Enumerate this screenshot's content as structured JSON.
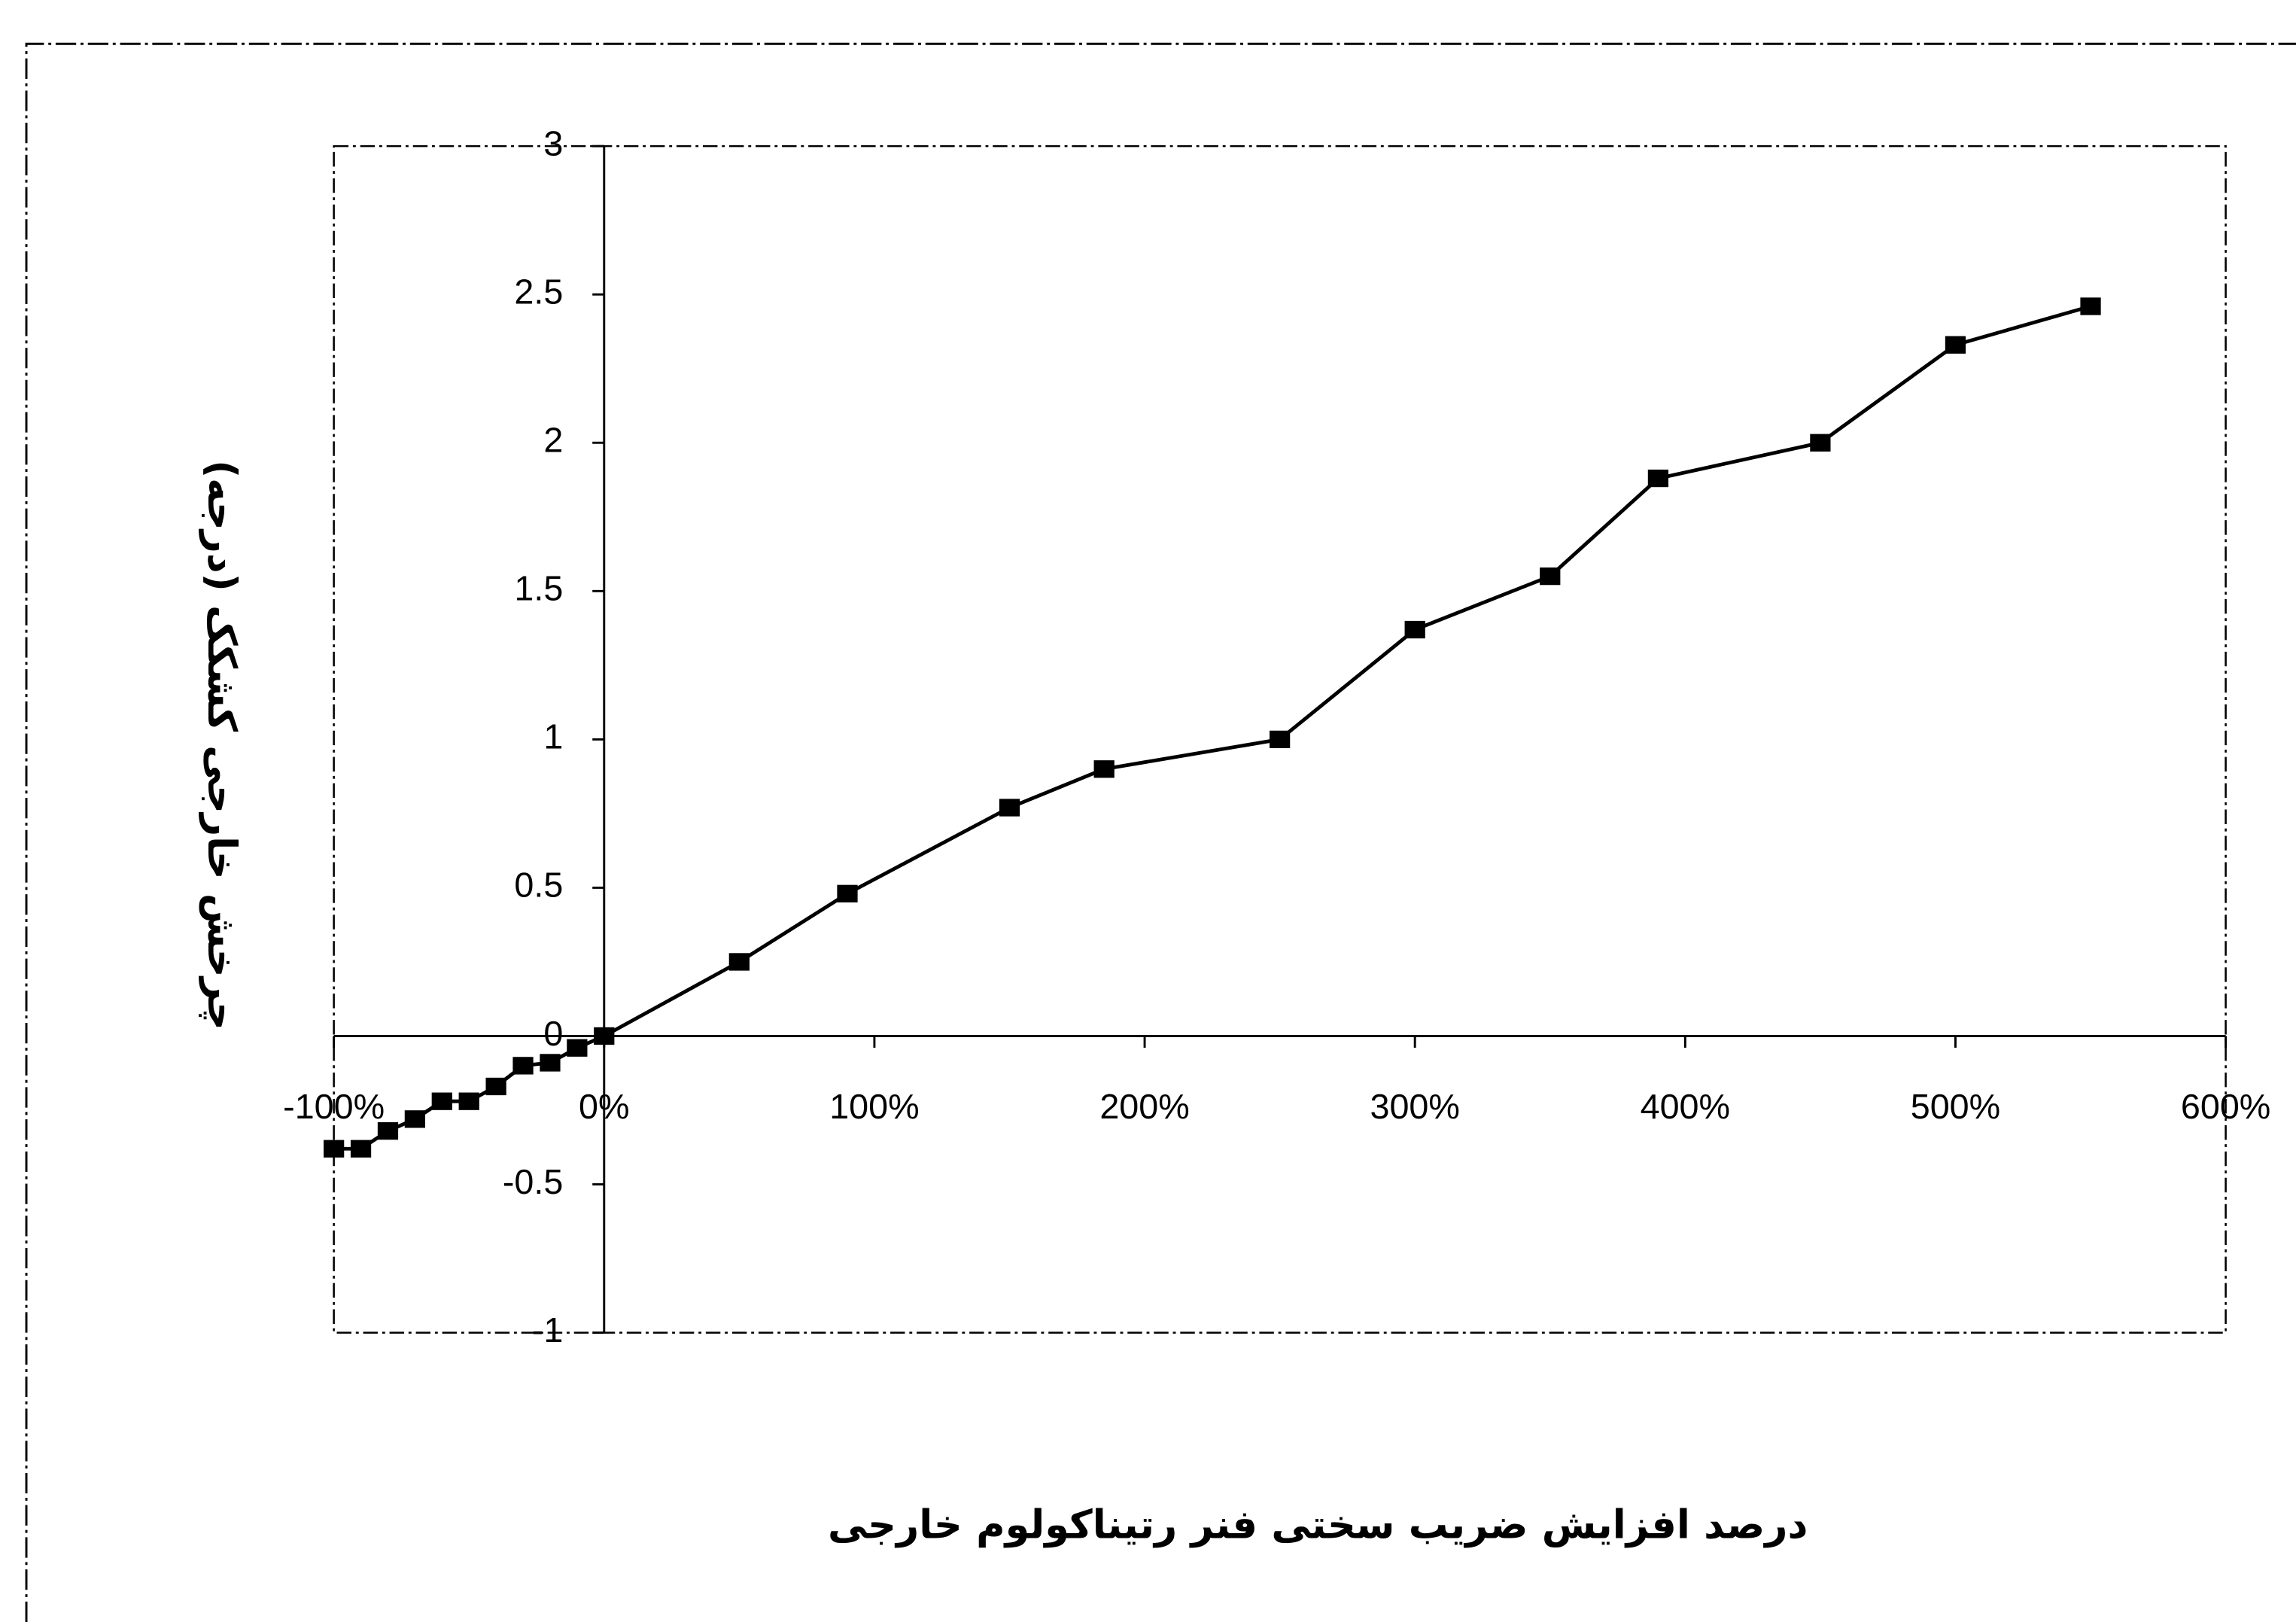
{
  "chart_data": {
    "type": "line",
    "x_label": "درصد افزایش ضریب سختی فنر رتیناکولوم خارجی",
    "y_label": "چرخش خارجی کشکک (درجه)",
    "x": [
      -100,
      -90,
      -80,
      -70,
      -60,
      -50,
      -40,
      -30,
      -20,
      -10,
      0,
      50,
      90,
      150,
      185,
      250,
      300,
      350,
      390,
      450,
      500,
      550
    ],
    "values": [
      -0.38,
      -0.38,
      -0.32,
      -0.28,
      -0.22,
      -0.22,
      -0.17,
      -0.1,
      -0.09,
      -0.04,
      0,
      0.25,
      0.48,
      0.77,
      0.9,
      1,
      1.37,
      1.55,
      1.88,
      2,
      2.33,
      2.46
    ],
    "color": "#000000",
    "xlim": [
      -100,
      600
    ],
    "ylim": [
      -1,
      3
    ],
    "xticks": [
      {
        "value": -100,
        "label": "-100%"
      },
      {
        "value": 0,
        "label": "0%"
      },
      {
        "value": 100,
        "label": "100%"
      },
      {
        "value": 200,
        "label": "200%"
      },
      {
        "value": 300,
        "label": "300%"
      },
      {
        "value": 400,
        "label": "400%"
      },
      {
        "value": 500,
        "label": "500%"
      },
      {
        "value": 600,
        "label": "600%"
      }
    ],
    "yticks": [
      -1,
      -0.5,
      0,
      0.5,
      1,
      1.5,
      2,
      2.5,
      3
    ],
    "grid": false
  }
}
